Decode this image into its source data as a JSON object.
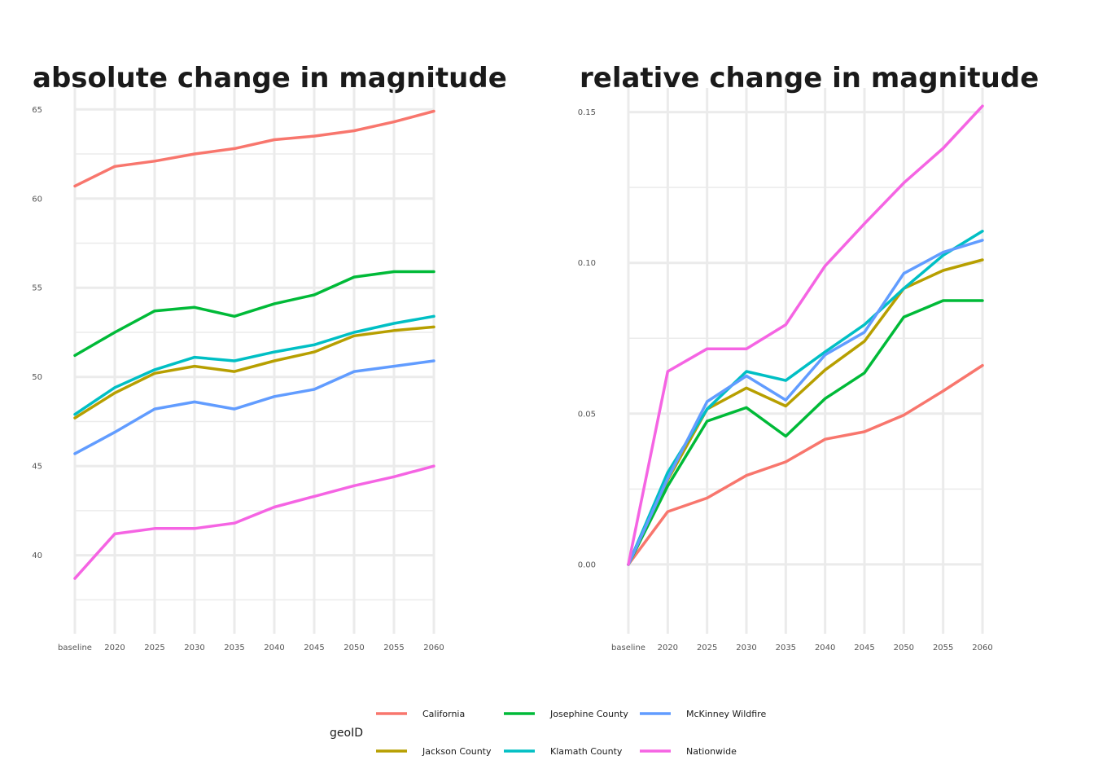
{
  "chart_data": [
    {
      "type": "line",
      "title": "absolute change in magnitude",
      "xlabel": "",
      "ylabel": "",
      "x": [
        "baseline",
        "2020",
        "2025",
        "2030",
        "2035",
        "2040",
        "2045",
        "2050",
        "2055",
        "2060"
      ],
      "yticks": [
        "40",
        "45",
        "50",
        "55",
        "60",
        "65"
      ],
      "ylim": [
        35.6,
        66.2
      ],
      "grid": true,
      "series": [
        {
          "name": "California",
          "color": "#F8766D",
          "values": [
            60.7,
            61.8,
            62.1,
            62.5,
            62.8,
            63.3,
            63.5,
            63.8,
            64.3,
            64.9
          ]
        },
        {
          "name": "Jackson County",
          "color": "#B79F00",
          "values": [
            47.7,
            49.1,
            50.2,
            50.6,
            50.3,
            50.9,
            51.4,
            52.3,
            52.6,
            52.8
          ]
        },
        {
          "name": "Josephine County",
          "color": "#00BA38",
          "values": [
            51.2,
            52.5,
            53.7,
            53.9,
            53.4,
            54.1,
            54.6,
            55.6,
            55.9,
            55.9
          ]
        },
        {
          "name": "Klamath County",
          "color": "#00BFC4",
          "values": [
            47.9,
            49.4,
            50.4,
            51.1,
            50.9,
            51.4,
            51.8,
            52.5,
            53.0,
            53.4
          ]
        },
        {
          "name": "McKinney Wildfire",
          "color": "#619CFF",
          "values": [
            45.7,
            46.9,
            48.2,
            48.6,
            48.2,
            48.9,
            49.3,
            50.3,
            50.6,
            50.9
          ]
        },
        {
          "name": "Nationwide",
          "color": "#F564E3",
          "values": [
            38.7,
            41.2,
            41.5,
            41.5,
            41.8,
            42.7,
            43.3,
            43.9,
            44.4,
            45.0
          ]
        }
      ]
    },
    {
      "type": "line",
      "title": "relative change in magnitude",
      "xlabel": "",
      "ylabel": "",
      "x": [
        "baseline",
        "2020",
        "2025",
        "2030",
        "2035",
        "2040",
        "2045",
        "2050",
        "2055",
        "2060"
      ],
      "yticks": [
        "0.00",
        "0.05",
        "0.10",
        "0.15"
      ],
      "ylim": [
        -0.023,
        0.158
      ],
      "grid": true,
      "series": [
        {
          "name": "California",
          "color": "#F8766D",
          "values": [
            0.0,
            0.0175,
            0.022,
            0.0295,
            0.034,
            0.0415,
            0.044,
            0.0495,
            0.0575,
            0.066
          ]
        },
        {
          "name": "Jackson County",
          "color": "#B79F00",
          "values": [
            0.0,
            0.028,
            0.0515,
            0.0585,
            0.0525,
            0.0645,
            0.074,
            0.0915,
            0.0975,
            0.101
          ]
        },
        {
          "name": "Josephine County",
          "color": "#00BA38",
          "values": [
            0.0,
            0.026,
            0.0475,
            0.052,
            0.0425,
            0.055,
            0.0635,
            0.082,
            0.0875,
            0.0875
          ]
        },
        {
          "name": "Klamath County",
          "color": "#00BFC4",
          "values": [
            0.0,
            0.0305,
            0.0515,
            0.064,
            0.061,
            0.0705,
            0.0795,
            0.0915,
            0.1025,
            0.1105
          ]
        },
        {
          "name": "McKinney Wildfire",
          "color": "#619CFF",
          "values": [
            0.0,
            0.0285,
            0.054,
            0.0625,
            0.0545,
            0.0695,
            0.077,
            0.0965,
            0.1035,
            0.1075
          ]
        },
        {
          "name": "Nationwide",
          "color": "#F564E3",
          "values": [
            0.0,
            0.064,
            0.0715,
            0.0715,
            0.0795,
            0.099,
            0.113,
            0.1265,
            0.138,
            0.152
          ]
        }
      ]
    }
  ],
  "legend": {
    "title": "geoID",
    "position": "bottom",
    "items": [
      {
        "label": "California",
        "color": "#F8766D"
      },
      {
        "label": "Jackson County",
        "color": "#B79F00"
      },
      {
        "label": "Josephine County",
        "color": "#00BA38"
      },
      {
        "label": "Klamath County",
        "color": "#00BFC4"
      },
      {
        "label": "McKinney Wildfire",
        "color": "#619CFF"
      },
      {
        "label": "Nationwide",
        "color": "#F564E3"
      }
    ]
  }
}
